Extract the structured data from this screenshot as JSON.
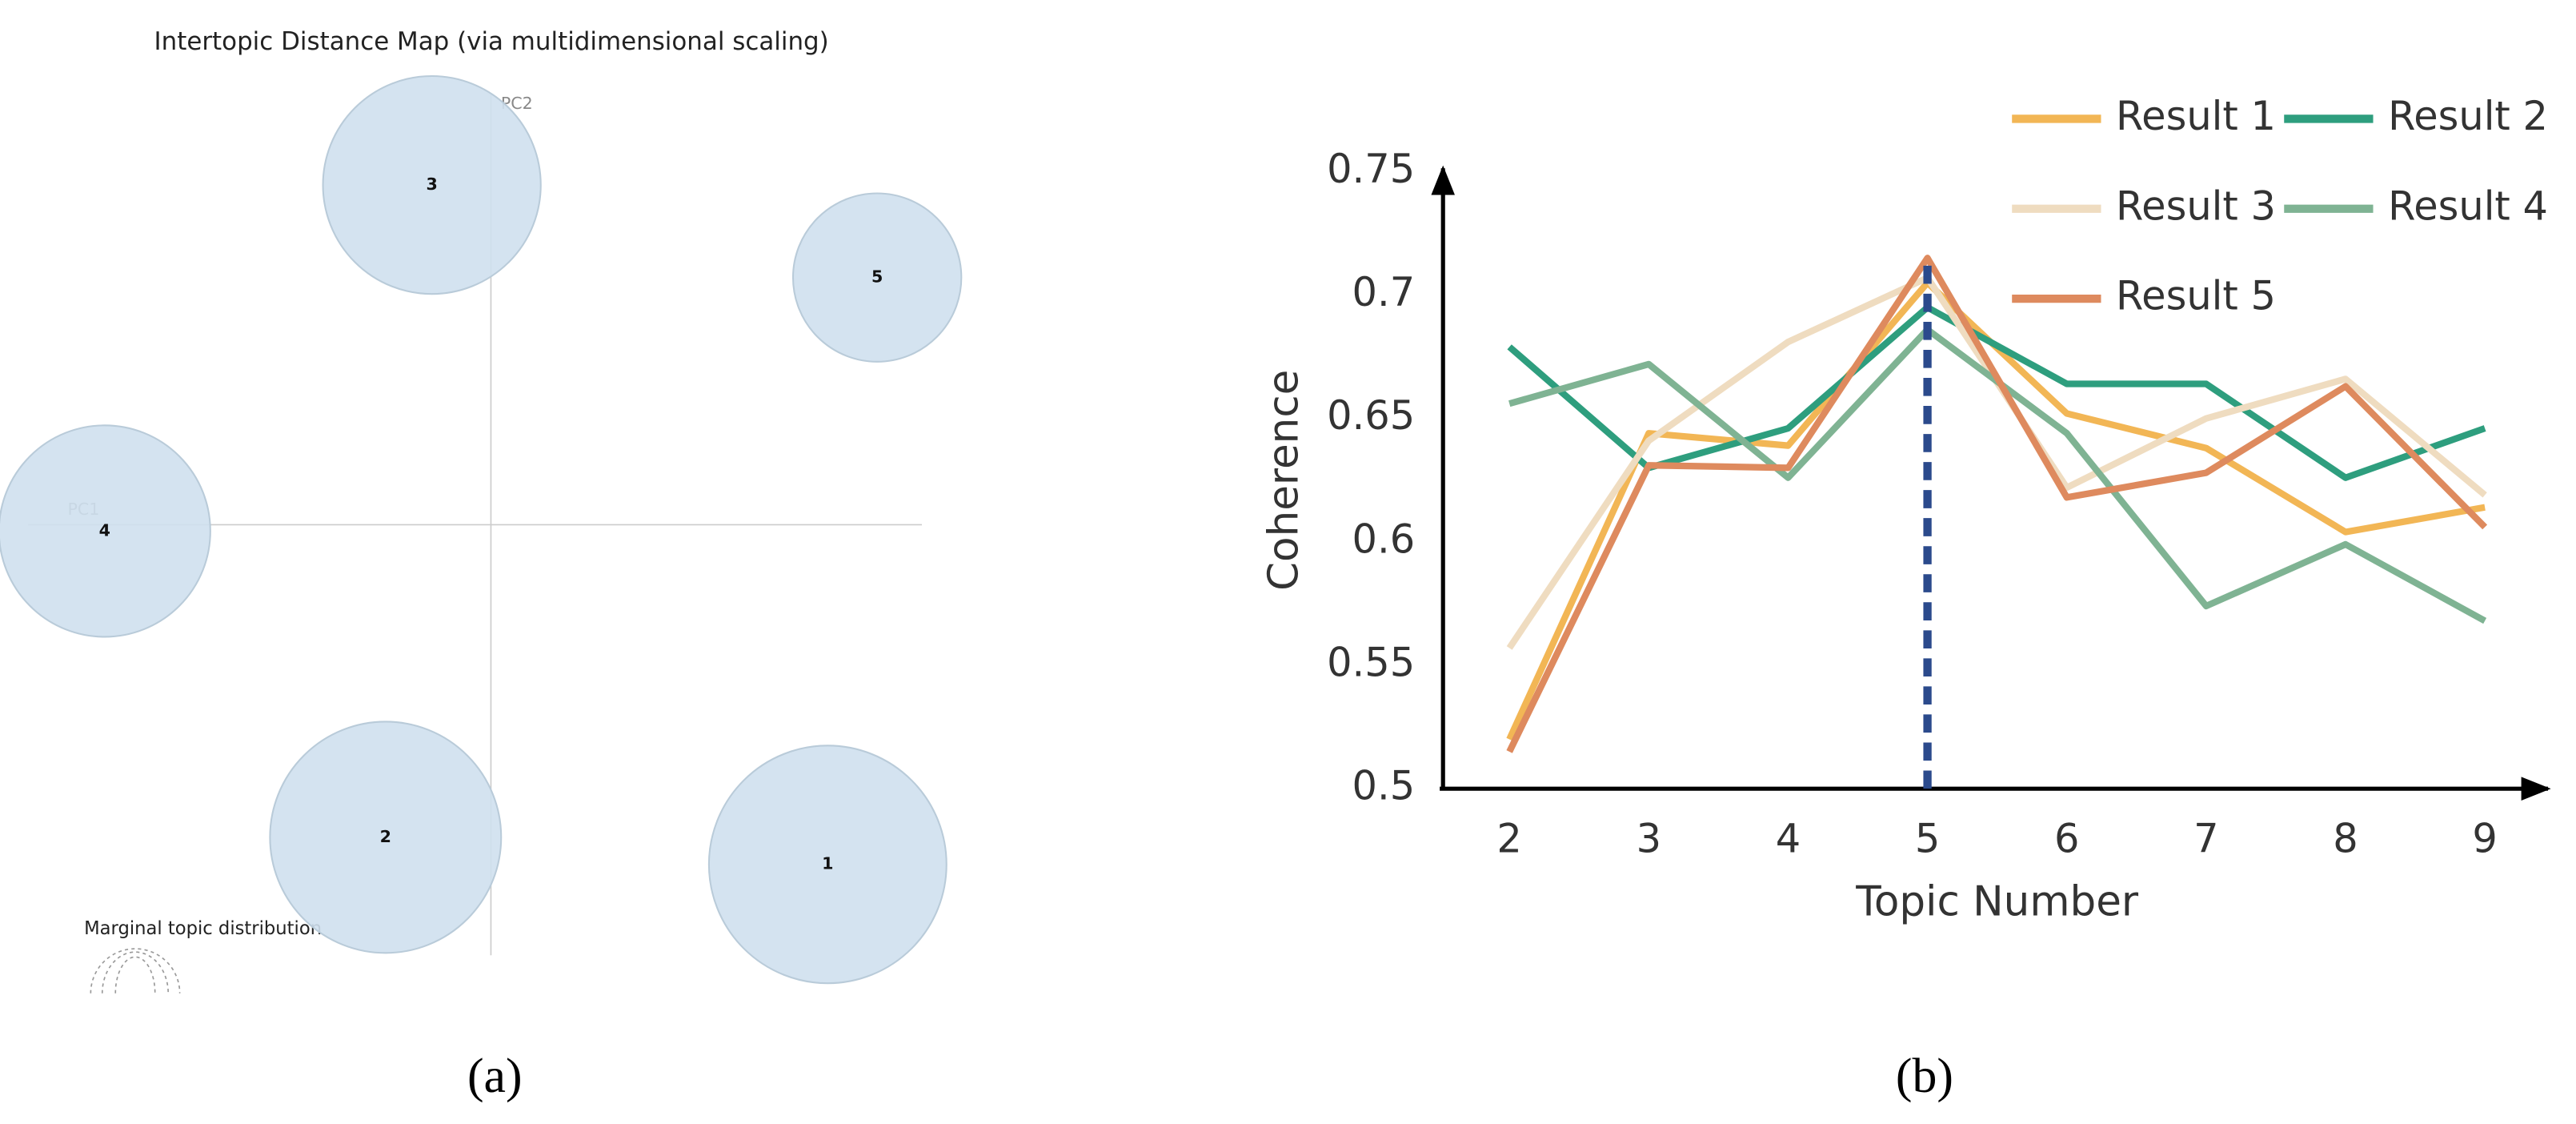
{
  "chart_data": [
    {
      "type": "scatter",
      "title": "Intertopic Distance Map (via multidimensional scaling)",
      "xlabel": "PC1",
      "ylabel": "PC2",
      "annotation": "Marginal topic distribution",
      "caption": "(a)",
      "labels": [
        "1",
        "2",
        "3",
        "4",
        "5"
      ],
      "x": [
        0.211,
        -0.066,
        -0.037,
        -0.242,
        0.242
      ],
      "y": [
        -0.213,
        -0.196,
        0.213,
        -0.004,
        0.155
      ],
      "sizes": [
        24.5,
        23.2,
        20.6,
        19.4,
        12.3
      ],
      "color": "#cfe0ee",
      "xlim": [
        -0.29,
        0.27
      ],
      "ylim": [
        -0.27,
        0.27
      ]
    },
    {
      "type": "line",
      "caption": "(b)",
      "xlabel": "Topic Number",
      "ylabel": "Coherence",
      "x": [
        2,
        3,
        4,
        5,
        6,
        7,
        8,
        9
      ],
      "xlim": [
        1.5,
        9.5
      ],
      "xticks": [
        2,
        3,
        4,
        5,
        6,
        7,
        8,
        9
      ],
      "ylim": [
        0.5,
        0.75
      ],
      "yticks": [
        0.5,
        0.55,
        0.6,
        0.65,
        0.7,
        0.75
      ],
      "highlight_x": 5,
      "highlight_color": "#2b4a8c",
      "series": [
        {
          "name": "Result 1",
          "color": "#f2b655",
          "values": [
            0.52,
            0.644,
            0.639,
            0.705,
            0.652,
            0.638,
            0.604,
            0.614
          ]
        },
        {
          "name": "Result 2",
          "color": "#2e9e7e",
          "values": [
            0.679,
            0.63,
            0.646,
            0.695,
            0.664,
            0.664,
            0.626,
            0.646
          ]
        },
        {
          "name": "Result 3",
          "color": "#efdcc0",
          "values": [
            0.557,
            0.641,
            0.681,
            0.707,
            0.622,
            0.65,
            0.666,
            0.619
          ]
        },
        {
          "name": "Result 4",
          "color": "#7fb393",
          "values": [
            0.656,
            0.672,
            0.626,
            0.686,
            0.644,
            0.574,
            0.599,
            0.568
          ]
        },
        {
          "name": "Result 5",
          "color": "#de8a5e",
          "values": [
            0.515,
            0.631,
            0.63,
            0.715,
            0.618,
            0.628,
            0.663,
            0.606
          ]
        }
      ]
    }
  ]
}
